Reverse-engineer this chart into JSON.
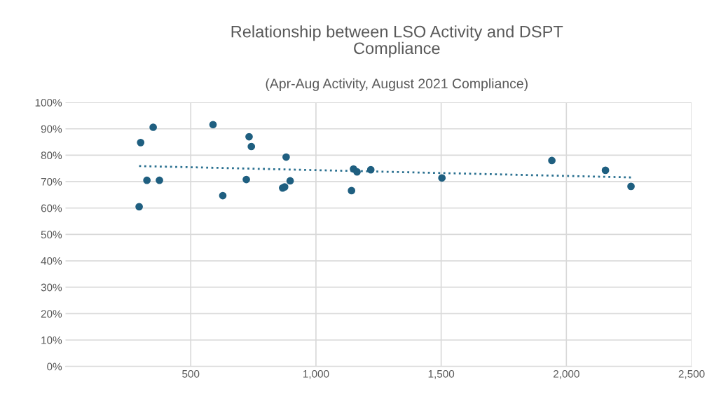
{
  "chart_data": {
    "type": "scatter",
    "title": "Relationship between LSO Activity and DSPT\nCompliance",
    "subtitle": "(Apr-Aug Activity, August 2021 Compliance)",
    "xlim": [
      0,
      2500
    ],
    "xticks": [
      {
        "value": 500,
        "label": "500"
      },
      {
        "value": 1000,
        "label": "1,000"
      },
      {
        "value": 1500,
        "label": "1,500"
      },
      {
        "value": 2000,
        "label": "2,000"
      },
      {
        "value": 2500,
        "label": "2,500"
      }
    ],
    "ylim": [
      0,
      100
    ],
    "yticks": [
      {
        "value": 0,
        "label": "0%"
      },
      {
        "value": 10,
        "label": "10%"
      },
      {
        "value": 20,
        "label": "20%"
      },
      {
        "value": 30,
        "label": "30%"
      },
      {
        "value": 40,
        "label": "40%"
      },
      {
        "value": 50,
        "label": "50%"
      },
      {
        "value": 60,
        "label": "60%"
      },
      {
        "value": 70,
        "label": "70%"
      },
      {
        "value": 80,
        "label": "80%"
      },
      {
        "value": 90,
        "label": "90%"
      },
      {
        "value": 100,
        "label": "100%"
      }
    ],
    "grid": true,
    "series": [
      {
        "marker": "circle",
        "color": "#1f5f80",
        "x": [
          294,
          300,
          325,
          350,
          375,
          589,
          628,
          722,
          733,
          742,
          867,
          875,
          881,
          897,
          1142,
          1150,
          1164,
          1219,
          1503,
          1942,
          2156,
          2258
        ],
        "values": [
          60.5,
          84.8,
          70.5,
          90.6,
          70.5,
          91.6,
          64.7,
          70.8,
          87,
          83.3,
          67.6,
          68,
          79.3,
          70.3,
          66.6,
          74.8,
          73.7,
          74.5,
          71.4,
          78,
          74.3,
          68.2
        ]
      },
      {
        "type": "line",
        "marker": "none",
        "color": "#2a7090",
        "line_style": "dotted",
        "x": [
          294,
          2258
        ],
        "values": [
          75.9,
          71.6
        ]
      }
    ]
  }
}
